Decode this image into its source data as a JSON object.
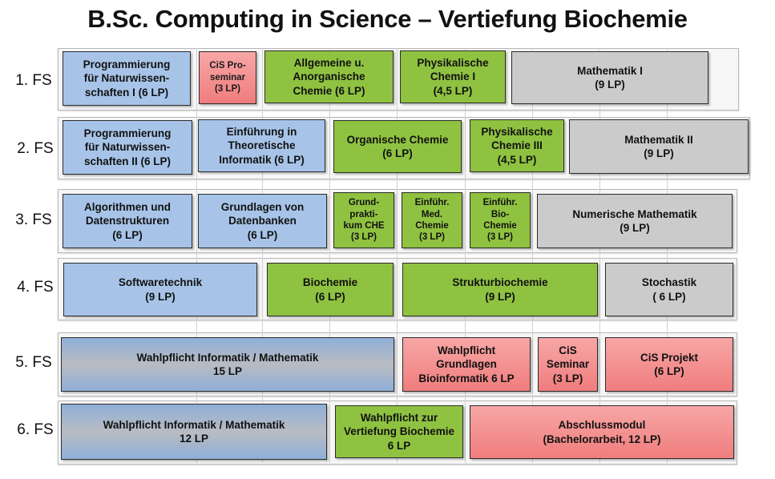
{
  "title": "B.Sc. Computing in Science – Vertiefung Biochemie",
  "semesters": [
    {
      "label": "1. FS",
      "modules": [
        {
          "text": "Programmierung\nfür Naturwissen-\nschaften I (6 LP)"
        },
        {
          "text": "CiS Pro-\nseminar\n(3 LP)"
        },
        {
          "text": "Allgemeine u.\nAnorganische\nChemie (6 LP)"
        },
        {
          "text": "Physikalische\nChemie I\n(4,5 LP)"
        },
        {
          "text": "Mathematik I\n(9 LP)"
        }
      ]
    },
    {
      "label": "2. FS",
      "modules": [
        {
          "text": "Programmierung\nfür Naturwissen-\nschaften II (6 LP)"
        },
        {
          "text": "Einführung in\nTheoretische\nInformatik (6 LP)"
        },
        {
          "text": "Organische Chemie\n(6 LP)"
        },
        {
          "text": "Physikalische\nChemie III\n(4,5 LP)"
        },
        {
          "text": "Mathematik II\n(9 LP)"
        }
      ]
    },
    {
      "label": "3. FS",
      "modules": [
        {
          "text": "Algorithmen und\nDatenstrukturen\n(6 LP)"
        },
        {
          "text": "Grundlagen von\nDatenbanken\n(6 LP)"
        },
        {
          "text": "Grund-\nprakti-\nkum CHE\n(3 LP)"
        },
        {
          "text": "Einführ.\nMed.\nChemie\n(3 LP)"
        },
        {
          "text": "Einführ.\nBio-\nChemie\n(3 LP)"
        },
        {
          "text": "Numerische Mathematik\n(9 LP)"
        }
      ]
    },
    {
      "label": "4. FS",
      "modules": [
        {
          "text": "Softwaretechnik\n(9 LP)"
        },
        {
          "text": "Biochemie\n(6 LP)"
        },
        {
          "text": "Strukturbiochemie\n(9 LP)"
        },
        {
          "text": "Stochastik\n( 6 LP)"
        }
      ]
    },
    {
      "label": "5. FS",
      "modules": [
        {
          "text": "Wahlpflicht Informatik / Mathematik\n15 LP"
        },
        {
          "text": "Wahlpflicht\nGrundlagen\nBioinformatik 6 LP"
        },
        {
          "text": "CiS\nSeminar\n(3 LP)"
        },
        {
          "text": "CiS Projekt\n(6 LP)"
        }
      ]
    },
    {
      "label": "6. FS",
      "modules": [
        {
          "text": "Wahlpflicht Informatik / Mathematik\n12  LP"
        },
        {
          "text": "Wahlpflicht zur\nVertiefung Biochemie\n6  LP"
        },
        {
          "text": "Abschlussmodul\n(Bachelorarbeit, 12 LP)"
        }
      ]
    }
  ]
}
